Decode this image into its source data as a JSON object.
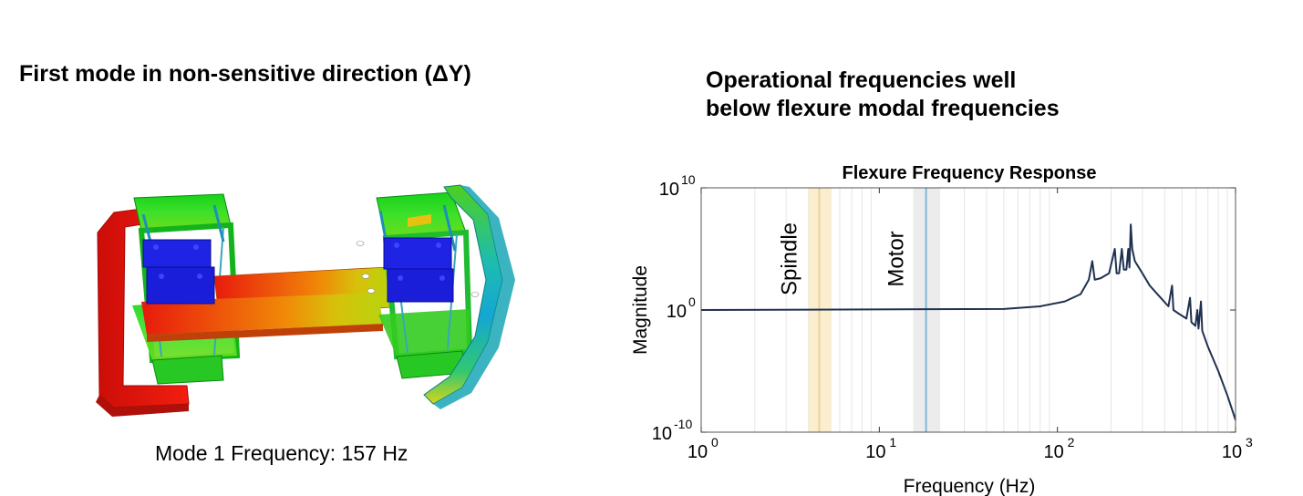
{
  "left_panel": {
    "title": "First mode in non-sensitive direction (ΔY)",
    "caption": "Mode 1 Frequency: 157 Hz"
  },
  "right_panel": {
    "title_line1": "Operational frequencies well",
    "title_line2": "below flexure modal frequencies"
  },
  "chart_data": {
    "type": "line",
    "title": "Flexure Frequency Response",
    "xlabel": "Frequency (Hz)",
    "ylabel": "Magnitude",
    "x_scale": "log",
    "y_scale": "log",
    "xlim": [
      1,
      1000
    ],
    "ylim": [
      1e-10,
      10000000000.0
    ],
    "x_ticks": [
      {
        "base": "10",
        "exp": "0"
      },
      {
        "base": "10",
        "exp": "1"
      },
      {
        "base": "10",
        "exp": "2"
      },
      {
        "base": "10",
        "exp": "3"
      }
    ],
    "y_ticks": [
      {
        "base": "10",
        "exp": "-10"
      },
      {
        "base": "10",
        "exp": "0"
      },
      {
        "base": "10",
        "exp": "10"
      }
    ],
    "grid": "vertical minor",
    "line_color": "#1f3150",
    "bands": [
      {
        "label": "Spindle",
        "range": [
          4.0,
          5.4
        ],
        "center": 4.6,
        "fill": "#fbeed0",
        "line": "#e8d39a"
      },
      {
        "label": "Motor",
        "range": [
          15.5,
          22.0
        ],
        "center": 18.3,
        "fill": "#ececec",
        "line": "#7fb8d8"
      }
    ],
    "series": [
      {
        "points": [
          [
            1,
            1
          ],
          [
            50,
            1.2
          ],
          [
            80,
            2
          ],
          [
            110,
            5
          ],
          [
            135,
            20
          ],
          [
            150,
            300
          ],
          [
            157,
            10000.0
          ],
          [
            162,
            300
          ],
          [
            175,
            400
          ],
          [
            195,
            1000.0
          ],
          [
            210,
            100000.0
          ],
          [
            215,
            1000.0
          ],
          [
            222,
            1000.0
          ],
          [
            230,
            100000.0
          ],
          [
            236,
            2000.0
          ],
          [
            244,
            2000.0
          ],
          [
            250,
            100000.0
          ],
          [
            254,
            3000.0
          ],
          [
            258,
            10000000.0
          ],
          [
            263,
            100000.0
          ],
          [
            272,
            10000.0
          ],
          [
            300,
            1000.0
          ],
          [
            330,
            100
          ],
          [
            380,
            10
          ],
          [
            420,
            2
          ],
          [
            440,
            100
          ],
          [
            448,
            1
          ],
          [
            480,
            0.5
          ],
          [
            530,
            0.2
          ],
          [
            555,
            10
          ],
          [
            565,
            0.1
          ],
          [
            595,
            0.05
          ],
          [
            610,
            1
          ],
          [
            620,
            0.03
          ],
          [
            640,
            5
          ],
          [
            650,
            0.02
          ],
          [
            700,
            0.001
          ],
          [
            800,
            1e-05
          ],
          [
            900,
            1e-07
          ],
          [
            1000,
            1e-09
          ]
        ]
      }
    ]
  }
}
